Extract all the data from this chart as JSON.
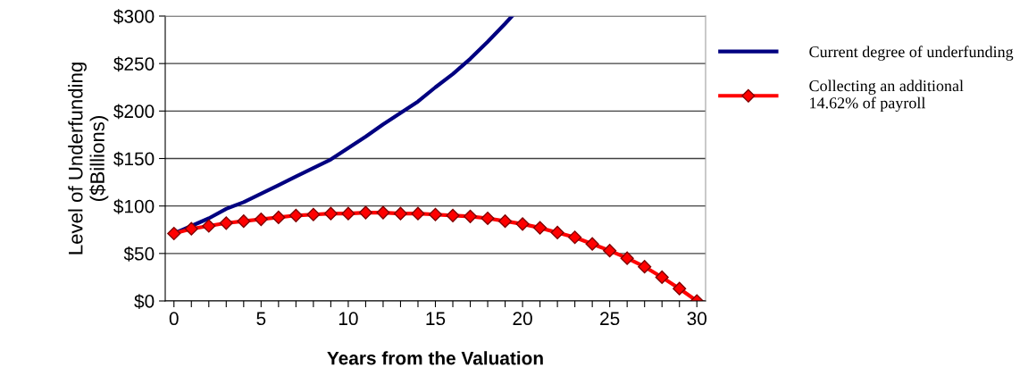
{
  "chart_data": {
    "type": "line",
    "xlabel": "Years from the Valuation",
    "ylabel": "Level of Underfunding\n($Billions)",
    "series": [
      {
        "name": "Current degree of underfunding",
        "color": "#000080",
        "marker": "none",
        "x": [
          0,
          1,
          2,
          3,
          4,
          5,
          6,
          7,
          8,
          9,
          10,
          11,
          12,
          13,
          14,
          15,
          16,
          17,
          18,
          19,
          19.4
        ],
        "values": [
          71,
          79,
          87,
          97,
          104,
          113,
          122,
          131,
          140,
          149,
          161,
          173,
          186,
          198,
          210,
          225,
          239,
          255,
          273,
          292,
          300
        ]
      },
      {
        "name": "Collecting an additional\n14.62% of payroll",
        "color": "#ff0000",
        "marker": "diamond",
        "x": [
          0,
          1,
          2,
          3,
          4,
          5,
          6,
          7,
          8,
          9,
          10,
          11,
          12,
          13,
          14,
          15,
          16,
          17,
          18,
          19,
          20,
          21,
          22,
          23,
          24,
          25,
          26,
          27,
          28,
          29,
          30
        ],
        "values": [
          71,
          76,
          79,
          82,
          84,
          86,
          88,
          90,
          91,
          92,
          92,
          93,
          93,
          92,
          92,
          91,
          90,
          89,
          87,
          84,
          81,
          77,
          72,
          67,
          60,
          53,
          45,
          36,
          25,
          13,
          0
        ]
      }
    ],
    "xlim": [
      -0.5,
      30.5
    ],
    "xticks": [
      0,
      {
        "value": 1,
        "label": null
      },
      {
        "value": 2,
        "label": null
      },
      {
        "value": 3,
        "label": null
      },
      {
        "value": 4,
        "label": null
      },
      5,
      {
        "value": 6,
        "label": null
      },
      {
        "value": 7,
        "label": null
      },
      {
        "value": 8,
        "label": null
      },
      {
        "value": 9,
        "label": null
      },
      10,
      {
        "value": 11,
        "label": null
      },
      {
        "value": 12,
        "label": null
      },
      {
        "value": 13,
        "label": null
      },
      {
        "value": 14,
        "label": null
      },
      15,
      {
        "value": 16,
        "label": null
      },
      {
        "value": 17,
        "label": null
      },
      {
        "value": 18,
        "label": null
      },
      {
        "value": 19,
        "label": null
      },
      20,
      {
        "value": 21,
        "label": null
      },
      {
        "value": 22,
        "label": null
      },
      {
        "value": 23,
        "label": null
      },
      {
        "value": 24,
        "label": null
      },
      25,
      {
        "value": 26,
        "label": null
      },
      {
        "value": 27,
        "label": null
      },
      {
        "value": 28,
        "label": null
      },
      {
        "value": 29,
        "label": null
      },
      30
    ],
    "ylim": [
      0,
      300
    ],
    "yticks": [
      {
        "value": 0,
        "label": "$0"
      },
      {
        "value": 50,
        "label": "$50"
      },
      {
        "value": 100,
        "label": "$100"
      },
      {
        "value": 150,
        "label": "$150"
      },
      {
        "value": 200,
        "label": "$200"
      },
      {
        "value": 250,
        "label": "$250"
      },
      {
        "value": 300,
        "label": "$300"
      }
    ],
    "grid": "y",
    "legend": "right",
    "line_style": "solid"
  }
}
